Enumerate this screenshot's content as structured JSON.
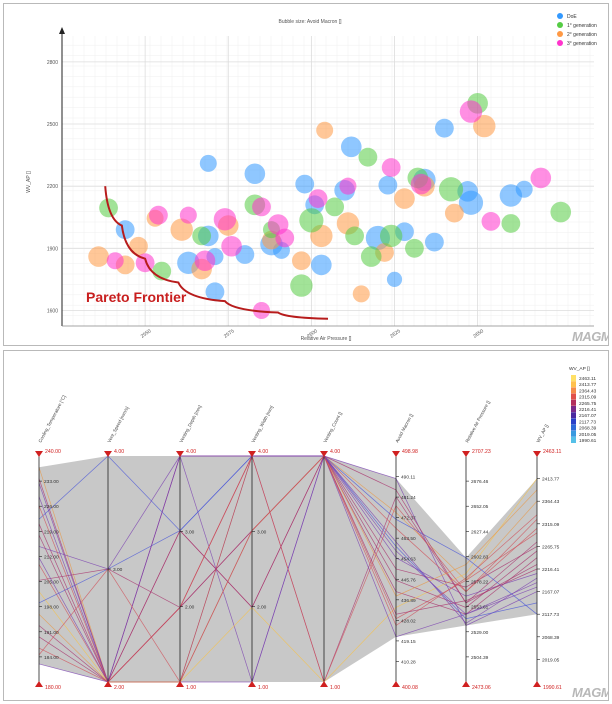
{
  "bubble_title": "Bubble size: Avoid Macron []",
  "bubble_ylabel": "WV_AP []",
  "bubble_xlabel": "Relative Air Pressure []",
  "annotation": "Pareto Frontier",
  "brand": "MAGMA",
  "colors": {
    "doe": "#3399ff",
    "gen1": "#55cc44",
    "gen2": "#ff9944",
    "gen3": "#ff33cc",
    "pareto": "#b71c1c",
    "grid": "#dcdcdc",
    "pc_fill": "#c8c8c8",
    "range_red": "#d02020"
  },
  "chart_data": [
    {
      "type": "scatter",
      "title": "Bubble size: Avoid Macron []",
      "xlabel": "Relative Air Pressure []",
      "ylabel": "WV_AP []",
      "xlim": [
        2525,
        2685
      ],
      "ylim": [
        1525,
        2925
      ],
      "x_ticks": [
        "2550",
        "2575",
        "2600",
        "2625",
        "2650"
      ],
      "y_ticks": [
        "1600",
        "1900",
        "2200",
        "2500",
        "2800"
      ],
      "legend": [
        "DoE",
        "1° generation",
        "2° generation",
        "3° generation"
      ],
      "legend_position": "top-right",
      "grid": true,
      "bubble_size": "Avoid Macron []",
      "pareto_frontier": [
        [
          2538,
          2200
        ],
        [
          2543,
          2010
        ],
        [
          2550,
          1850
        ],
        [
          2560,
          1735
        ],
        [
          2574,
          1645
        ],
        [
          2590,
          1590
        ],
        [
          2605,
          1560
        ]
      ],
      "series": [
        {
          "name": "DoE",
          "points": [
            [
              2569,
              2310,
              0.5
            ],
            [
              2583,
              2260,
              0.7
            ],
            [
              2598,
              2210,
              0.6
            ],
            [
              2610,
              2180,
              0.7
            ],
            [
              2623,
              2205,
              0.6
            ],
            [
              2620,
              1950,
              0.9
            ],
            [
              2637,
              1930,
              0.6
            ],
            [
              2647,
              2175,
              0.7
            ],
            [
              2660,
              2155,
              0.8
            ],
            [
              2544,
              1990,
              0.6
            ],
            [
              2569,
              1960,
              0.7
            ],
            [
              2580,
              1870,
              0.6
            ],
            [
              2588,
              1920,
              0.8
            ],
            [
              2601,
              2110,
              0.6
            ],
            [
              2571,
              1860,
              0.5
            ],
            [
              2603,
              1820,
              0.7
            ],
            [
              2628,
              1980,
              0.6
            ],
            [
              2563,
              1830,
              0.8
            ],
            [
              2640,
              2480,
              0.6
            ],
            [
              2648,
              2120,
              0.9
            ],
            [
              2664,
              2185,
              0.5
            ],
            [
              2571,
              1690,
              0.6
            ],
            [
              2612,
              2390,
              0.7
            ],
            [
              2625,
              1750,
              0.4
            ],
            [
              2634,
              2230,
              0.8
            ],
            [
              2591,
              1890,
              0.5
            ]
          ]
        },
        {
          "name": "1° generation",
          "points": [
            [
              2539,
              2095,
              0.6
            ],
            [
              2567,
              1960,
              0.6
            ],
            [
              2583,
              2110,
              0.7
            ],
            [
              2600,
              2035,
              0.9
            ],
            [
              2613,
              1960,
              0.6
            ],
            [
              2624,
              1960,
              0.8
            ],
            [
              2632,
              2240,
              0.7
            ],
            [
              2642,
              2185,
              0.9
            ],
            [
              2660,
              2020,
              0.6
            ],
            [
              2675,
              2075,
              0.7
            ],
            [
              2597,
              1720,
              0.8
            ],
            [
              2617,
              2340,
              0.6
            ],
            [
              2650,
              2600,
              0.7
            ],
            [
              2607,
              2100,
              0.6
            ],
            [
              2588,
              1990,
              0.5
            ],
            [
              2618,
              1860,
              0.7
            ],
            [
              2631,
              1900,
              0.6
            ],
            [
              2555,
              1790,
              0.6
            ]
          ]
        },
        {
          "name": "2° generation",
          "points": [
            [
              2536,
              1860,
              0.7
            ],
            [
              2548,
              1910,
              0.6
            ],
            [
              2553,
              2045,
              0.5
            ],
            [
              2561,
              1990,
              0.8
            ],
            [
              2575,
              2010,
              0.7
            ],
            [
              2588,
              1940,
              0.6
            ],
            [
              2603,
              1960,
              0.8
            ],
            [
              2622,
              1880,
              0.6
            ],
            [
              2634,
              2200,
              0.7
            ],
            [
              2643,
              2070,
              0.6
            ],
            [
              2652,
              2490,
              0.8
            ],
            [
              2604,
              2470,
              0.5
            ],
            [
              2615,
              1680,
              0.5
            ],
            [
              2544,
              1820,
              0.6
            ],
            [
              2567,
              1800,
              0.7
            ],
            [
              2597,
              1840,
              0.6
            ],
            [
              2628,
              2140,
              0.7
            ],
            [
              2611,
              2020,
              0.8
            ]
          ]
        },
        {
          "name": "3° generation",
          "points": [
            [
              2541,
              1840,
              0.5
            ],
            [
              2550,
              1830,
              0.6
            ],
            [
              2554,
              2060,
              0.6
            ],
            [
              2568,
              1840,
              0.7
            ],
            [
              2574,
              2040,
              0.8
            ],
            [
              2585,
              2100,
              0.6
            ],
            [
              2590,
              2015,
              0.7
            ],
            [
              2611,
              2200,
              0.5
            ],
            [
              2624,
              2290,
              0.6
            ],
            [
              2633,
              2210,
              0.7
            ],
            [
              2648,
              2560,
              0.8
            ],
            [
              2654,
              2030,
              0.6
            ],
            [
              2669,
              2240,
              0.7
            ],
            [
              2585,
              1600,
              0.5
            ],
            [
              2602,
              2140,
              0.6
            ],
            [
              2576,
              1910,
              0.7
            ],
            [
              2592,
              1950,
              0.6
            ],
            [
              2563,
              2060,
              0.5
            ]
          ]
        }
      ]
    },
    {
      "type": "parallel_coordinates",
      "axes": [
        {
          "label": "Cooling_Temperature [°C]",
          "max": "240.00",
          "min": "180.00",
          "ticks": [
            "240.00",
            "233.00",
            "226.00",
            "219.00",
            "212.00",
            "205.00",
            "198.00",
            "191.00",
            "184.00",
            "180.00"
          ]
        },
        {
          "label": "Vent_Speed [mm/s]",
          "max": "4.00",
          "min": "2.00",
          "ticks": [
            "4.00",
            "3.00",
            "2.00"
          ]
        },
        {
          "label": "Venting_Depth [mm]",
          "max": "4.00",
          "min": "1.00",
          "ticks": [
            "4.00",
            "3.00",
            "2.00",
            "1.00"
          ]
        },
        {
          "label": "Venting_Width [mm]",
          "max": "4.00",
          "min": "1.00",
          "ticks": [
            "4.00",
            "3.00",
            "2.00",
            "1.00"
          ]
        },
        {
          "label": "Venting_Count []",
          "max": "4.00",
          "min": "1.00",
          "ticks": [
            "4.00",
            "1.00"
          ]
        },
        {
          "label": "Avoid Macron []",
          "max": "498.98",
          "min": "400.08",
          "ticks": [
            "498.98",
            "490.11",
            "481.24",
            "472.37",
            "463.50",
            "454.63",
            "445.76",
            "436.89",
            "428.02",
            "419.15",
            "410.28",
            "400.08"
          ]
        },
        {
          "label": "Relative Air Pressure []",
          "max": "2707.23",
          "min": "2473.06",
          "ticks": [
            "2707.23",
            "2676.46",
            "2652.05",
            "2627.44",
            "2602.83",
            "2578.22",
            "2553.61",
            "2529.00",
            "2504.39",
            "2473.06"
          ]
        },
        {
          "label": "WV_AP []",
          "max": "2463.11",
          "min": "1990.61",
          "ticks": [
            "2463.11",
            "2413.77",
            "2364.43",
            "2315.09",
            "2265.75",
            "2216.41",
            "2167.07",
            "2117.73",
            "2068.39",
            "2019.05",
            "1990.61"
          ]
        }
      ],
      "colorbar": {
        "label": "WV_AP []",
        "ticks": [
          "2463.11",
          "2413.77",
          "2364.43",
          "2315.09",
          "2265.75",
          "2216.41",
          "2167.07",
          "2117.73",
          "2068.39",
          "2019.05",
          "1990.61"
        ]
      },
      "lines": [
        [
          0.95,
          0.0,
          0.0,
          1.0,
          1.0,
          0.75,
          0.45,
          0.8
        ],
        [
          0.9,
          0.0,
          0.33,
          1.0,
          0.0,
          0.82,
          0.35,
          0.62
        ],
        [
          0.7,
          0.0,
          0.67,
          0.33,
          1.0,
          0.4,
          0.3,
          0.55
        ],
        [
          0.82,
          0.0,
          0.0,
          0.67,
          1.0,
          0.55,
          0.38,
          0.48
        ],
        [
          0.6,
          0.5,
          1.0,
          0.0,
          1.0,
          0.9,
          0.25,
          0.4
        ],
        [
          0.52,
          0.0,
          0.33,
          1.0,
          1.0,
          0.68,
          0.4,
          0.72
        ],
        [
          0.4,
          0.0,
          0.0,
          0.33,
          0.0,
          0.33,
          0.48,
          0.9
        ],
        [
          0.35,
          0.5,
          0.67,
          1.0,
          1.0,
          0.6,
          0.28,
          0.35
        ],
        [
          0.25,
          0.0,
          0.33,
          0.67,
          1.0,
          0.45,
          0.33,
          0.58
        ],
        [
          0.15,
          0.0,
          1.0,
          1.0,
          1.0,
          0.28,
          0.45,
          0.66
        ],
        [
          0.08,
          0.0,
          0.0,
          0.0,
          1.0,
          0.2,
          0.3,
          0.44
        ],
        [
          0.72,
          1.0,
          0.67,
          1.0,
          1.0,
          0.72,
          0.55,
          0.3
        ],
        [
          0.65,
          0.0,
          0.0,
          1.0,
          1.0,
          0.85,
          0.35,
          0.52
        ],
        [
          0.45,
          0.5,
          0.33,
          0.67,
          1.0,
          0.5,
          0.42,
          0.6
        ],
        [
          0.88,
          0.0,
          1.0,
          1.0,
          1.0,
          0.62,
          0.26,
          0.46
        ],
        [
          0.3,
          0.0,
          0.0,
          0.67,
          1.0,
          0.38,
          0.52,
          0.85
        ],
        [
          0.2,
          0.0,
          0.67,
          0.33,
          1.0,
          0.3,
          0.36,
          0.5
        ],
        [
          0.78,
          0.0,
          0.33,
          1.0,
          0.0,
          0.78,
          0.4,
          0.68
        ],
        [
          0.55,
          0.0,
          1.0,
          1.0,
          1.0,
          0.58,
          0.3,
          0.42
        ],
        [
          0.12,
          0.5,
          0.0,
          0.67,
          1.0,
          0.25,
          0.46,
          0.74
        ]
      ]
    }
  ]
}
